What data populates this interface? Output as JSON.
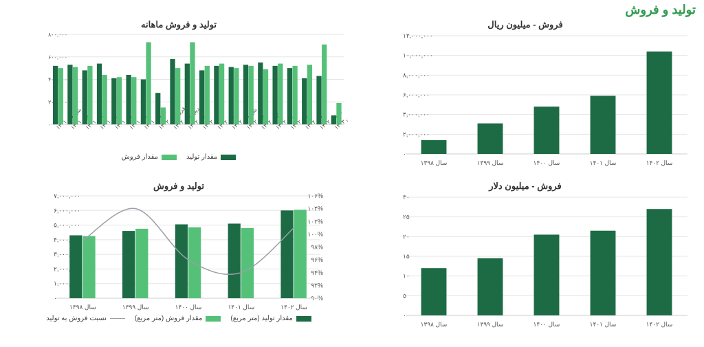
{
  "page": {
    "title": "تولید و فروش"
  },
  "palette": {
    "dark_green": "#1d6b45",
    "mid_green": "#2e9b4f",
    "light_green": "#55c178",
    "grid": "#e5e5e5",
    "axis": "#cccccc",
    "text": "#555555",
    "line_gray": "#9aa0a6"
  },
  "charts": {
    "sales_rial": {
      "type": "bar",
      "title": "فروش - میلیون ریال",
      "categories": [
        "سال ۱۳۹۸",
        "سال ۱۳۹۹",
        "سال ۱۴۰۰",
        "سال ۱۴۰۱",
        "سال ۱۴۰۲"
      ],
      "values": [
        1400000,
        3100000,
        4800000,
        5900000,
        10400000
      ],
      "bar_color": "#1d6b45",
      "ylim": [
        0,
        12000000
      ],
      "ytick_step": 2000000,
      "ytick_labels": [
        "۰",
        "۲,۰۰۰,۰۰۰",
        "۴,۰۰۰,۰۰۰",
        "۶,۰۰۰,۰۰۰",
        "۸,۰۰۰,۰۰۰",
        "۱۰,۰۰۰,۰۰۰",
        "۱۲,۰۰۰,۰۰۰"
      ],
      "bar_width": 0.45,
      "title_fontsize": 13,
      "label_fontsize": 9
    },
    "sales_usd": {
      "type": "bar",
      "title": "فروش - میلیون دلار",
      "categories": [
        "سال ۱۳۹۸",
        "سال ۱۳۹۹",
        "سال ۱۴۰۰",
        "سال ۱۴۰۱",
        "سال ۱۴۰۲"
      ],
      "values": [
        12,
        14.5,
        20.5,
        21.5,
        27
      ],
      "bar_color": "#1d6b45",
      "ylim": [
        0,
        30
      ],
      "ytick_step": 5,
      "ytick_labels": [
        "۰",
        "۵",
        "۱۰",
        "۱۵",
        "۲۰",
        "۲۵",
        "۳۰"
      ],
      "bar_width": 0.45,
      "title_fontsize": 13,
      "label_fontsize": 9
    },
    "monthly": {
      "type": "grouped_bar",
      "title": "تولید و فروش ماهانه",
      "categories": [
        "شهریور ۱۴۰۱",
        "مهر ۱۴۰۱",
        "آبان ۱۴۰۱",
        "آذر ۱۴۰۱",
        "دی ۱۴۰۱",
        "بهمن ۱۴۰۱",
        "اسفند ۱۴۰۱",
        "فروردین ۱۴۰۲",
        "اردیبهشت ۱۴۰۲",
        "خرداد ۱۴۰۲",
        "تیر ۱۴۰۲",
        "مرداد ۱۴۰۲",
        "شهریور ۱۴۰۲",
        "مهر ۱۴۰۲",
        "آبان ۱۴۰۲",
        "آذر ۱۴۰۲",
        "دی ۱۴۰۲",
        "بهمن ۱۴۰۲",
        "اسفند ۱۴۰۲",
        "فروردین ۱۴۰۳"
      ],
      "series": [
        {
          "name": "مقدار تولید",
          "color": "#1d6b45",
          "values": [
            520000,
            530000,
            480000,
            540000,
            410000,
            440000,
            400000,
            280000,
            580000,
            540000,
            480000,
            520000,
            510000,
            530000,
            550000,
            520000,
            500000,
            410000,
            430000,
            80000
          ]
        },
        {
          "name": "مقدار فروش",
          "color": "#55c178",
          "values": [
            500000,
            510000,
            520000,
            440000,
            420000,
            420000,
            730000,
            150000,
            500000,
            730000,
            520000,
            540000,
            500000,
            520000,
            490000,
            540000,
            520000,
            530000,
            710000,
            190000
          ]
        }
      ],
      "ylim": [
        0,
        800000
      ],
      "ytick_step": 200000,
      "ytick_labels": [
        "۰",
        "۲۰۰,۰۰۰",
        "۴۰۰,۰۰۰",
        "۶۰۰,۰۰۰",
        "۸۰۰,۰۰۰"
      ],
      "bar_group_width": 0.72,
      "title_fontsize": 13,
      "label_fontsize": 8
    },
    "annual": {
      "type": "combo_bar_line",
      "title": "تولید و فروش",
      "categories": [
        "سال ۱۳۹۸",
        "سال ۱۳۹۹",
        "سال ۱۴۰۰",
        "سال ۱۴۰۱",
        "سال ۱۴۰۲"
      ],
      "bars": [
        {
          "name": "مقدار تولید (متر مربع)",
          "color": "#1d6b45",
          "values": [
            4300000,
            4600000,
            5050000,
            5100000,
            6000000
          ]
        },
        {
          "name": "مقدار فروش (متر مربع)",
          "color": "#55c178",
          "values": [
            4250000,
            4750000,
            4850000,
            4800000,
            6050000
          ]
        }
      ],
      "line": {
        "name": "نسبت فروش به تولید",
        "color": "#9aa0a6",
        "values": [
          99,
          104,
          96,
          94,
          101
        ]
      },
      "ylim_left": [
        0,
        7000000
      ],
      "ytick_left_step": 1000000,
      "ytick_left_labels": [
        "۰",
        "۱,۰۰۰,۰۰۰",
        "۲,۰۰۰,۰۰۰",
        "۳,۰۰۰,۰۰۰",
        "۴,۰۰۰,۰۰۰",
        "۵,۰۰۰,۰۰۰",
        "۶,۰۰۰,۰۰۰",
        "۷,۰۰۰,۰۰۰"
      ],
      "ylim_right": [
        90,
        106
      ],
      "ytick_right_step": 2,
      "ytick_right_labels": [
        "۹۰%",
        "۹۲%",
        "۹۴%",
        "۹۶%",
        "۹۸%",
        "۱۰۰%",
        "۱۰۲%",
        "۱۰۴%",
        "۱۰۶%"
      ],
      "bar_group_width": 0.5,
      "title_fontsize": 13,
      "label_fontsize": 9
    }
  }
}
